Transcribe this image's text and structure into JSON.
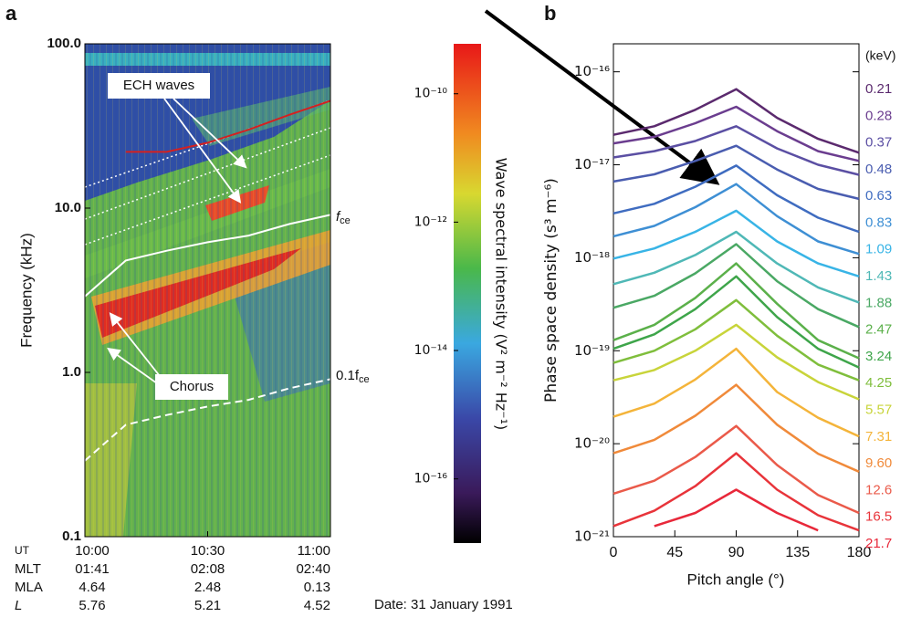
{
  "chart_data": [
    {
      "type": "spectrogram",
      "label": "a",
      "ylabel": "Frequency (kHz)",
      "log_y": true,
      "ylim": [
        0.1,
        100
      ],
      "yticks": [
        0.1,
        {
          "value": 1,
          "label": "1.0"
        },
        {
          "value": 10,
          "label": "10.0"
        },
        {
          "value": 100,
          "label": "100.0"
        }
      ],
      "xlim": [
        "10:00",
        "11:00"
      ],
      "time_table": [
        {
          "label": "UT",
          "values": [
            "10:00",
            "10:30",
            "11:00"
          ]
        },
        {
          "label": "MLT",
          "values": [
            "01:41",
            "02:08",
            "02:40"
          ]
        },
        {
          "label": "MLA",
          "values": [
            4.64,
            2.48,
            0.13
          ]
        },
        {
          "label": "L",
          "values": [
            5.76,
            5.21,
            4.52
          ]
        }
      ],
      "lines": [
        {
          "style": "solid",
          "color": "#ffffff",
          "x": [
            "10:00",
            "10:10",
            "10:20",
            "10:30",
            "10:40",
            "10:50",
            "11:00"
          ],
          "values": [
            2.9,
            4.8,
            5.5,
            6.2,
            6.8,
            8.0,
            9.1
          ]
        },
        {
          "style": "dashed",
          "color": "#ffffff",
          "x": [
            "10:00",
            "10:10",
            "10:20",
            "10:30",
            "10:40",
            "10:50",
            "11:00"
          ],
          "values": [
            0.29,
            0.48,
            0.55,
            0.62,
            0.68,
            0.8,
            0.91
          ]
        },
        {
          "style": "solid",
          "color": "#d42020",
          "x": [
            "10:10",
            "10:20",
            "10:30",
            "10:40",
            "10:50",
            "11:00"
          ],
          "values": [
            22,
            22,
            25,
            30,
            37,
            45
          ]
        }
      ],
      "annotations": [
        {
          "text": "ECH waves"
        },
        {
          "text": "Chorus"
        }
      ],
      "side_labels": [
        {
          "text": "f",
          "sub": "ce"
        },
        {
          "text": "0.1f",
          "sub": "ce"
        }
      ],
      "colorbar": {
        "label": "Wave spectral intensity (V² m⁻² Hz⁻¹)",
        "log": true,
        "lim": [
          1e-17,
          6e-10
        ],
        "ticks": [
          {
            "value": 1e-10,
            "label": "10⁻¹⁰"
          },
          {
            "value": 1e-12,
            "label": "10⁻¹²"
          },
          {
            "value": 1e-14,
            "label": "10⁻¹⁴"
          },
          {
            "value": 1e-16,
            "label": "10⁻¹⁶"
          }
        ]
      },
      "note": "Date: 31 January 1991"
    },
    {
      "type": "line",
      "label": "b",
      "xlabel": "Pitch angle (°)",
      "ylabel": "Phase space density (s³ m⁻⁶)",
      "log_y": true,
      "xlim": [
        0,
        180
      ],
      "xticks": [
        0,
        45,
        90,
        135,
        180
      ],
      "ylim": [
        1e-21,
        2e-16
      ],
      "yticks": [
        {
          "value": 1e-16,
          "label": "10⁻¹⁶"
        },
        {
          "value": 1e-17,
          "label": "10⁻¹⁷"
        },
        {
          "value": 1e-18,
          "label": "10⁻¹⁸"
        },
        {
          "value": 1e-19,
          "label": "10⁻¹⁹"
        },
        {
          "value": 1e-20,
          "label": "10⁻²⁰"
        },
        {
          "value": 1e-21,
          "label": "10⁻²¹"
        }
      ],
      "legend_title": "(keV)",
      "x": [
        0,
        30,
        60,
        90,
        120,
        150,
        180
      ],
      "series": [
        {
          "name": "0.21",
          "color": "#5b2a6e",
          "values": [
            2.1e-17,
            2.6e-17,
            3.9e-17,
            6.5e-17,
            3.2e-17,
            1.9e-17,
            1.35e-17
          ]
        },
        {
          "name": "0.28",
          "color": "#6b3d8f",
          "values": [
            1.7e-17,
            2e-17,
            2.8e-17,
            4.2e-17,
            2.3e-17,
            1.4e-17,
            1.1e-17
          ]
        },
        {
          "name": "0.37",
          "color": "#5b4fa3",
          "values": [
            1.2e-17,
            1.4e-17,
            1.8e-17,
            2.6e-17,
            1.5e-17,
            1e-17,
            7.8e-18
          ]
        },
        {
          "name": "0.48",
          "color": "#4a5db0",
          "values": [
            6.6e-18,
            7.9e-18,
            1.1e-17,
            1.6e-17,
            8.9e-18,
            5.5e-18,
            4.3e-18
          ]
        },
        {
          "name": "0.63",
          "color": "#3f6cc0",
          "values": [
            3e-18,
            3.8e-18,
            5.8e-18,
            9.8e-18,
            4.7e-18,
            2.7e-18,
            1.9e-18
          ]
        },
        {
          "name": "0.83",
          "color": "#3e8fd4",
          "values": [
            1.7e-18,
            2.2e-18,
            3.5e-18,
            6.2e-18,
            2.8e-18,
            1.5e-18,
            1.1e-18
          ]
        },
        {
          "name": "1.09",
          "color": "#38b4e6",
          "values": [
            9.8e-19,
            1.26e-18,
            1.9e-18,
            3.2e-18,
            1.5e-18,
            8.7e-19,
            6.3e-19
          ]
        },
        {
          "name": "1.43",
          "color": "#4fb8b6",
          "values": [
            5.2e-19,
            6.9e-19,
            1.07e-18,
            1.9e-18,
            8.7e-19,
            4.8e-19,
            3.3e-19
          ]
        },
        {
          "name": "1.88",
          "color": "#4aa864",
          "values": [
            2.9e-19,
            3.9e-19,
            6.8e-19,
            1.4e-18,
            5.6e-19,
            2.8e-19,
            1.8e-19
          ]
        },
        {
          "name": "2.47",
          "color": "#5bb04a",
          "values": [
            1.3e-19,
            1.9e-19,
            3.7e-19,
            8.7e-19,
            3.2e-19,
            1.3e-19,
            8.3e-20
          ]
        },
        {
          "name": "3.24",
          "color": "#3ea54a",
          "values": [
            1.05e-19,
            1.5e-19,
            2.8e-19,
            6.3e-19,
            2.3e-19,
            1.05e-19,
            6.6e-20
          ]
        },
        {
          "name": "4.25",
          "color": "#7fbe3c",
          "values": [
            7.4e-20,
            1e-19,
            1.7e-19,
            3.5e-19,
            1.45e-19,
            7.1e-20,
            4.8e-20
          ]
        },
        {
          "name": "5.57",
          "color": "#c8d43a",
          "values": [
            4.8e-20,
            6.2e-20,
            1e-19,
            1.9e-19,
            8.5e-20,
            4.6e-20,
            3e-20
          ]
        },
        {
          "name": "7.31",
          "color": "#f4b43a",
          "values": [
            1.95e-20,
            2.7e-20,
            4.9e-20,
            1.05e-19,
            3.6e-20,
            1.9e-20,
            1.2e-20
          ]
        },
        {
          "name": "9.60",
          "color": "#f08a3a",
          "values": [
            7.9e-21,
            1.1e-20,
            2e-20,
            4.3e-20,
            1.6e-20,
            7.8e-21,
            5e-21
          ]
        },
        {
          "name": "12.6",
          "color": "#ea5a4a",
          "values": [
            2.9e-21,
            4e-21,
            7.2e-21,
            1.55e-20,
            5.9e-21,
            2.8e-21,
            1.8e-21
          ]
        },
        {
          "name": "16.5",
          "color": "#e8343a",
          "values": [
            1.3e-21,
            1.9e-21,
            3.5e-21,
            7.9e-21,
            3.2e-21,
            1.7e-21,
            1.17e-21
          ]
        },
        {
          "name": "21.7",
          "color": "#e8283a",
          "values": [
            null,
            1.3e-21,
            1.8e-21,
            3.2e-21,
            1.8e-21,
            1.17e-21,
            null
          ]
        }
      ]
    }
  ]
}
